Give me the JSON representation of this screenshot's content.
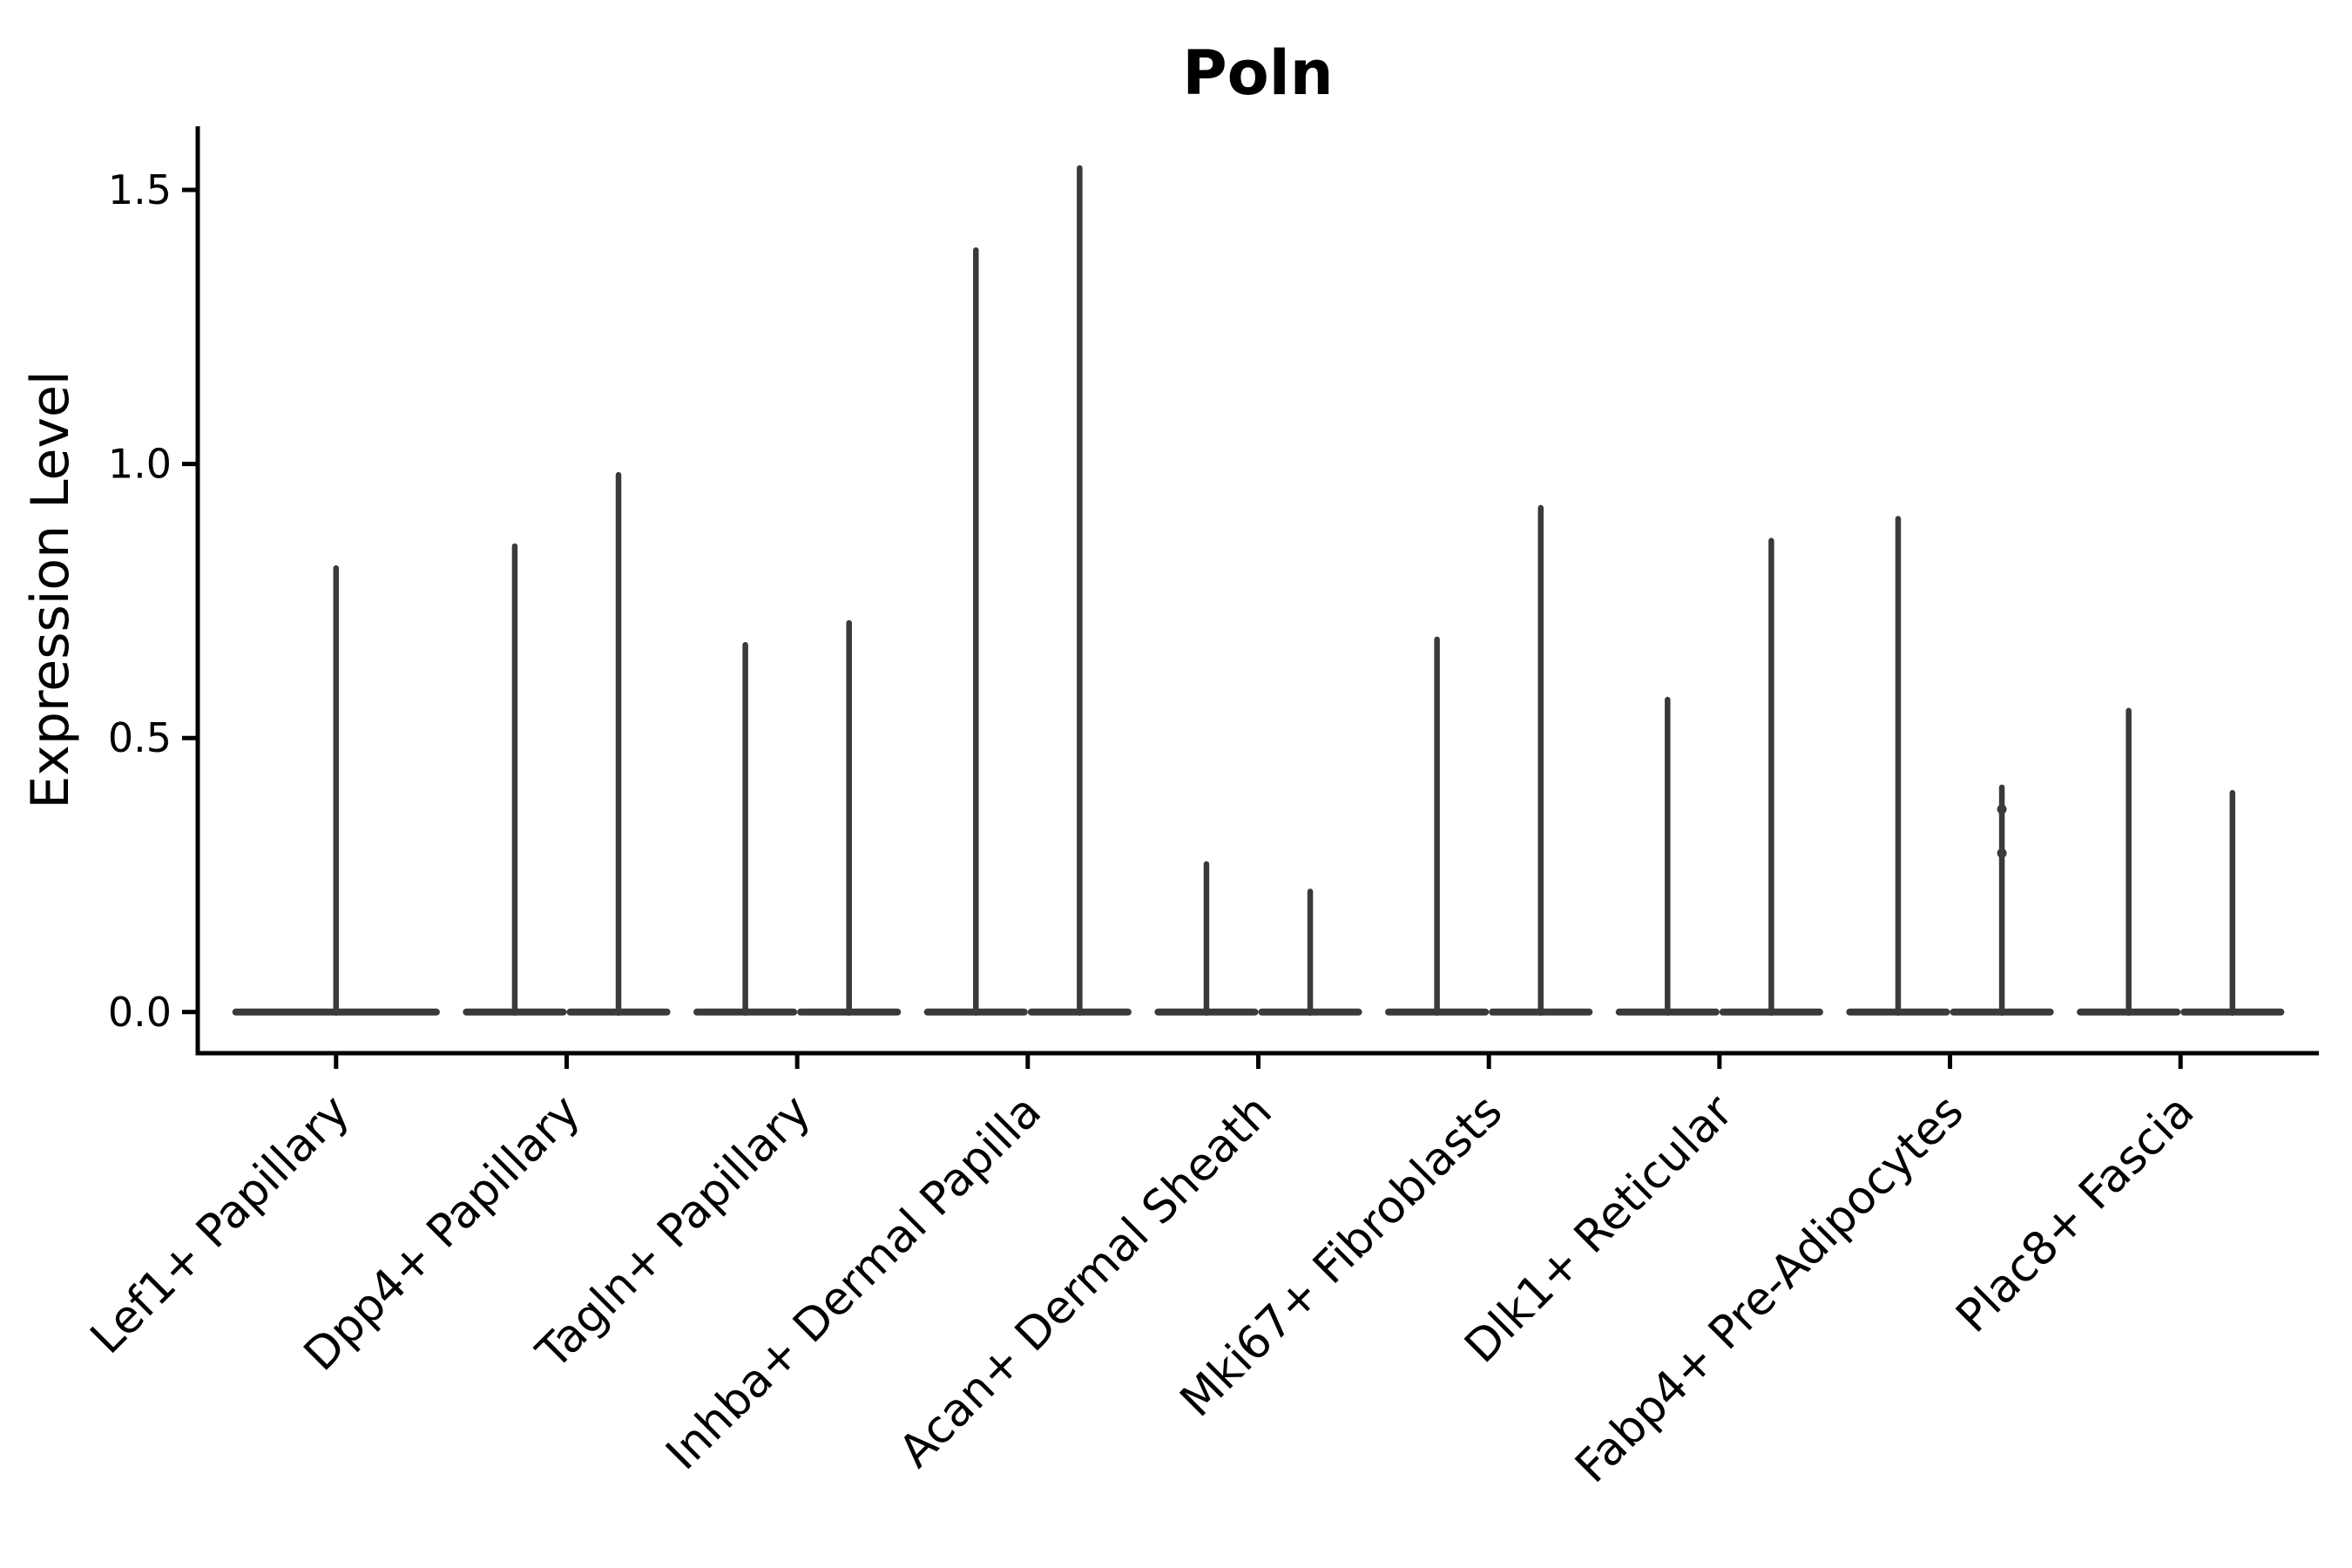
{
  "title": "Poln",
  "colors": {
    "background": "#ffffff",
    "axis": "#000000",
    "text": "#000000",
    "violin": "#3a3a3a",
    "violin_base": "#404040"
  },
  "chart_data": {
    "type": "violin",
    "title": "Poln",
    "xlabel": "",
    "ylabel": "Expression Level",
    "grid": false,
    "legend": "none",
    "background": "#ffffff",
    "axis_color": "#000000",
    "violin_color": "#3a3a3a",
    "ylim": [
      -0.075,
      1.616
    ],
    "xlim": [
      0.4,
      9.6
    ],
    "yticks": [
      0.0,
      0.5,
      1.0,
      1.5
    ],
    "ytick_labels": [
      "0.0",
      "0.5",
      "1.0",
      "1.5"
    ],
    "xtick_rotation": 45,
    "categories": [
      "Lef1+ Papillary",
      "Dpp4+ Papillary",
      "Tagln+ Papillary",
      "Inhba+ Dermal Papilla",
      "Acan+ Dermal Sheath",
      "Mki67+ Fibroblasts",
      "Dlk1+ Reticular",
      "Fabp4+ Pre-Adipocytes",
      "Plac8+ Fascia"
    ],
    "violin_shape_note": "each violin collapses to a flat blob at 0 with a thin vertical spike up to its max expression value",
    "groups": [
      {
        "category": "Lef1+ Papillary",
        "position": 1,
        "violins": [
          {
            "offset": 0.0,
            "half_width": 0.45,
            "max": 0.81,
            "points": []
          }
        ]
      },
      {
        "category": "Dpp4+ Papillary",
        "position": 2,
        "violins": [
          {
            "offset": -0.225,
            "half_width": 0.225,
            "max": 0.85,
            "points": []
          },
          {
            "offset": 0.225,
            "half_width": 0.225,
            "max": 0.98,
            "points": []
          }
        ]
      },
      {
        "category": "Tagln+ Papillary",
        "position": 3,
        "violins": [
          {
            "offset": -0.225,
            "half_width": 0.225,
            "max": 0.67,
            "points": []
          },
          {
            "offset": 0.225,
            "half_width": 0.225,
            "max": 0.71,
            "points": []
          }
        ]
      },
      {
        "category": "Inhba+ Dermal Papilla",
        "position": 4,
        "violins": [
          {
            "offset": -0.225,
            "half_width": 0.225,
            "max": 1.39,
            "points": []
          },
          {
            "offset": 0.225,
            "half_width": 0.225,
            "max": 1.54,
            "points": []
          }
        ]
      },
      {
        "category": "Acan+ Dermal Sheath",
        "position": 5,
        "violins": [
          {
            "offset": -0.225,
            "half_width": 0.225,
            "max": 0.27,
            "points": []
          },
          {
            "offset": 0.225,
            "half_width": 0.225,
            "max": 0.22,
            "points": []
          }
        ]
      },
      {
        "category": "Mki67+ Fibroblasts",
        "position": 6,
        "violins": [
          {
            "offset": -0.225,
            "half_width": 0.225,
            "max": 0.68,
            "points": []
          },
          {
            "offset": 0.225,
            "half_width": 0.225,
            "max": 0.92,
            "points": []
          }
        ]
      },
      {
        "category": "Dlk1+ Reticular",
        "position": 7,
        "violins": [
          {
            "offset": -0.225,
            "half_width": 0.225,
            "max": 0.57,
            "points": []
          },
          {
            "offset": 0.225,
            "half_width": 0.225,
            "max": 0.86,
            "points": []
          }
        ]
      },
      {
        "category": "Fabp4+ Pre-Adipocytes",
        "position": 8,
        "violins": [
          {
            "offset": -0.225,
            "half_width": 0.225,
            "max": 0.9,
            "points": []
          },
          {
            "offset": 0.225,
            "half_width": 0.225,
            "max": 0.41,
            "points": [
              0.37,
              0.29
            ]
          }
        ]
      },
      {
        "category": "Plac8+ Fascia",
        "position": 9,
        "violins": [
          {
            "offset": -0.225,
            "half_width": 0.225,
            "max": 0.55,
            "points": []
          },
          {
            "offset": 0.225,
            "half_width": 0.225,
            "max": 0.4,
            "points": []
          }
        ]
      }
    ]
  }
}
